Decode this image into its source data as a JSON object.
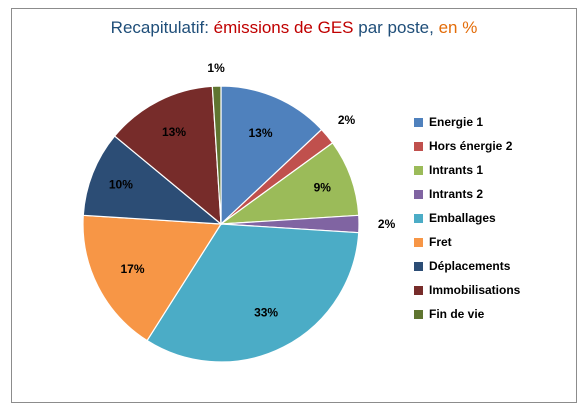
{
  "title": {
    "parts": [
      {
        "text": "Recapitulatif: ",
        "color": "#1f4e79"
      },
      {
        "text": "émissions de GES",
        "color": "#c00000"
      },
      {
        "text": " par poste, ",
        "color": "#1f4e79"
      },
      {
        "text": "en %",
        "color": "#e36c09"
      }
    ]
  },
  "chart_data": {
    "type": "pie",
    "title": "Recapitulatif: émissions de GES par poste, en %",
    "categories": [
      "Energie 1",
      "Hors énergie 2",
      "Intrants 1",
      "Intrants 2",
      "Emballages",
      "Fret",
      "Déplacements",
      "Immobilisations",
      "Fin de vie"
    ],
    "values": [
      13,
      2,
      9,
      2,
      33,
      17,
      10,
      13,
      1
    ],
    "labels": [
      "13%",
      "2%",
      "9%",
      "2%",
      "33%",
      "17%",
      "10%",
      "13%",
      "1%"
    ],
    "colors": [
      "#4f81bd",
      "#c0504d",
      "#9bbb59",
      "#8064a2",
      "#4bacc6",
      "#f79646",
      "#2c4d75",
      "#772c2a",
      "#5f7530"
    ],
    "legend_position": "right"
  }
}
